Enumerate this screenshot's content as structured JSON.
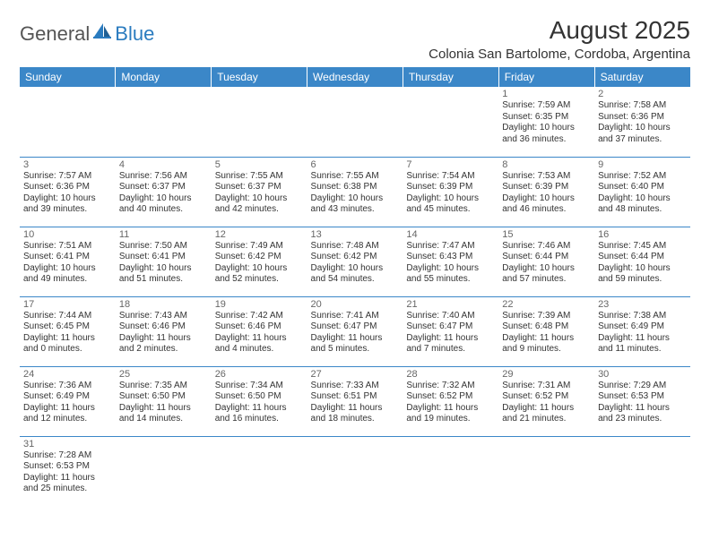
{
  "logo": {
    "general": "General",
    "blue": "Blue"
  },
  "title": "August 2025",
  "location": "Colonia San Bartolome, Cordoba, Argentina",
  "colors": {
    "header_bg": "#3b87c8",
    "header_text": "#ffffff",
    "border": "#3b87c8",
    "logo_gray": "#555555",
    "logo_blue": "#2a7bbf",
    "body_text": "#333333",
    "daynum_text": "#666666"
  },
  "weekdays": [
    "Sunday",
    "Monday",
    "Tuesday",
    "Wednesday",
    "Thursday",
    "Friday",
    "Saturday"
  ],
  "weeks": [
    [
      null,
      null,
      null,
      null,
      null,
      {
        "n": 1,
        "sr": "7:59 AM",
        "ss": "6:35 PM",
        "dh": 10,
        "dm": 36
      },
      {
        "n": 2,
        "sr": "7:58 AM",
        "ss": "6:36 PM",
        "dh": 10,
        "dm": 37
      }
    ],
    [
      {
        "n": 3,
        "sr": "7:57 AM",
        "ss": "6:36 PM",
        "dh": 10,
        "dm": 39
      },
      {
        "n": 4,
        "sr": "7:56 AM",
        "ss": "6:37 PM",
        "dh": 10,
        "dm": 40
      },
      {
        "n": 5,
        "sr": "7:55 AM",
        "ss": "6:37 PM",
        "dh": 10,
        "dm": 42
      },
      {
        "n": 6,
        "sr": "7:55 AM",
        "ss": "6:38 PM",
        "dh": 10,
        "dm": 43
      },
      {
        "n": 7,
        "sr": "7:54 AM",
        "ss": "6:39 PM",
        "dh": 10,
        "dm": 45
      },
      {
        "n": 8,
        "sr": "7:53 AM",
        "ss": "6:39 PM",
        "dh": 10,
        "dm": 46
      },
      {
        "n": 9,
        "sr": "7:52 AM",
        "ss": "6:40 PM",
        "dh": 10,
        "dm": 48
      }
    ],
    [
      {
        "n": 10,
        "sr": "7:51 AM",
        "ss": "6:41 PM",
        "dh": 10,
        "dm": 49
      },
      {
        "n": 11,
        "sr": "7:50 AM",
        "ss": "6:41 PM",
        "dh": 10,
        "dm": 51
      },
      {
        "n": 12,
        "sr": "7:49 AM",
        "ss": "6:42 PM",
        "dh": 10,
        "dm": 52
      },
      {
        "n": 13,
        "sr": "7:48 AM",
        "ss": "6:42 PM",
        "dh": 10,
        "dm": 54
      },
      {
        "n": 14,
        "sr": "7:47 AM",
        "ss": "6:43 PM",
        "dh": 10,
        "dm": 55
      },
      {
        "n": 15,
        "sr": "7:46 AM",
        "ss": "6:44 PM",
        "dh": 10,
        "dm": 57
      },
      {
        "n": 16,
        "sr": "7:45 AM",
        "ss": "6:44 PM",
        "dh": 10,
        "dm": 59
      }
    ],
    [
      {
        "n": 17,
        "sr": "7:44 AM",
        "ss": "6:45 PM",
        "dh": 11,
        "dm": 0
      },
      {
        "n": 18,
        "sr": "7:43 AM",
        "ss": "6:46 PM",
        "dh": 11,
        "dm": 2
      },
      {
        "n": 19,
        "sr": "7:42 AM",
        "ss": "6:46 PM",
        "dh": 11,
        "dm": 4
      },
      {
        "n": 20,
        "sr": "7:41 AM",
        "ss": "6:47 PM",
        "dh": 11,
        "dm": 5
      },
      {
        "n": 21,
        "sr": "7:40 AM",
        "ss": "6:47 PM",
        "dh": 11,
        "dm": 7
      },
      {
        "n": 22,
        "sr": "7:39 AM",
        "ss": "6:48 PM",
        "dh": 11,
        "dm": 9
      },
      {
        "n": 23,
        "sr": "7:38 AM",
        "ss": "6:49 PM",
        "dh": 11,
        "dm": 11
      }
    ],
    [
      {
        "n": 24,
        "sr": "7:36 AM",
        "ss": "6:49 PM",
        "dh": 11,
        "dm": 12
      },
      {
        "n": 25,
        "sr": "7:35 AM",
        "ss": "6:50 PM",
        "dh": 11,
        "dm": 14
      },
      {
        "n": 26,
        "sr": "7:34 AM",
        "ss": "6:50 PM",
        "dh": 11,
        "dm": 16
      },
      {
        "n": 27,
        "sr": "7:33 AM",
        "ss": "6:51 PM",
        "dh": 11,
        "dm": 18
      },
      {
        "n": 28,
        "sr": "7:32 AM",
        "ss": "6:52 PM",
        "dh": 11,
        "dm": 19
      },
      {
        "n": 29,
        "sr": "7:31 AM",
        "ss": "6:52 PM",
        "dh": 11,
        "dm": 21
      },
      {
        "n": 30,
        "sr": "7:29 AM",
        "ss": "6:53 PM",
        "dh": 11,
        "dm": 23
      }
    ],
    [
      {
        "n": 31,
        "sr": "7:28 AM",
        "ss": "6:53 PM",
        "dh": 11,
        "dm": 25
      },
      null,
      null,
      null,
      null,
      null,
      null
    ]
  ],
  "labels": {
    "sunrise": "Sunrise:",
    "sunset": "Sunset:",
    "daylight": "Daylight:",
    "hours": "hours",
    "and": "and",
    "minutes": "minutes."
  }
}
